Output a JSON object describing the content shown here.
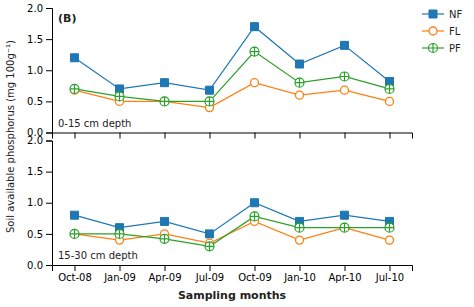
{
  "chart_data": [
    {
      "type": "line",
      "ylabel": "Soil available phosphorus (mg 100g⁻¹)",
      "annotations": [
        "(B)",
        "0-15 cm depth"
      ],
      "categories": [
        "Oct-08",
        "Jan-09",
        "Apr-09",
        "Jul-09",
        "Oct-09",
        "Jan-10",
        "Apr-10",
        "Jul-10"
      ],
      "series": [
        {
          "name": "NF",
          "marker": "square",
          "values": [
            1.2,
            0.7,
            0.8,
            0.68,
            1.7,
            1.1,
            1.4,
            0.82
          ],
          "errors": [
            0.0,
            0.0,
            0.0,
            0.0,
            0.06,
            0.0,
            0.0,
            0.0
          ]
        },
        {
          "name": "FL",
          "marker": "circle-open",
          "values": [
            0.68,
            0.5,
            0.5,
            0.4,
            0.8,
            0.6,
            0.68,
            0.5
          ]
        },
        {
          "name": "PF",
          "marker": "circle-plus",
          "values": [
            0.7,
            0.58,
            0.5,
            0.5,
            1.3,
            0.8,
            0.9,
            0.7
          ]
        }
      ],
      "ylim": [
        0.0,
        2.0
      ],
      "yticks": [
        {
          "value": 0,
          "label": "0.0"
        },
        0.5,
        {
          "value": 1,
          "label": "1.0"
        },
        1.5,
        {
          "value": 2,
          "label": "2.0"
        }
      ],
      "legend": "right",
      "tick_labels": "y"
    },
    {
      "type": "line",
      "xlabel": "Sampling months",
      "annotations": [
        "15-30 cm depth"
      ],
      "categories": [
        "Oct-08",
        "Jan-09",
        "Apr-09",
        "Jul-09",
        "Oct-09",
        "Jan-10",
        "Apr-10",
        "Jul-10"
      ],
      "series": [
        {
          "name": "NF",
          "marker": "square",
          "values": [
            0.8,
            0.6,
            0.7,
            0.5,
            1.0,
            0.7,
            0.8,
            0.7
          ]
        },
        {
          "name": "FL",
          "marker": "circle-open",
          "values": [
            0.5,
            0.4,
            0.5,
            0.35,
            0.7,
            0.4,
            0.6,
            0.4
          ]
        },
        {
          "name": "PF",
          "marker": "circle-plus",
          "values": [
            0.5,
            0.5,
            0.42,
            0.3,
            0.78,
            0.6,
            0.6,
            0.6
          ]
        }
      ],
      "ylim": [
        0.0,
        2.0
      ],
      "yticks": [
        {
          "value": 0,
          "label": "0.0"
        },
        0.5,
        {
          "value": 1,
          "label": "1.0"
        },
        1.5,
        {
          "value": 2,
          "label": "2.0"
        }
      ]
    }
  ]
}
